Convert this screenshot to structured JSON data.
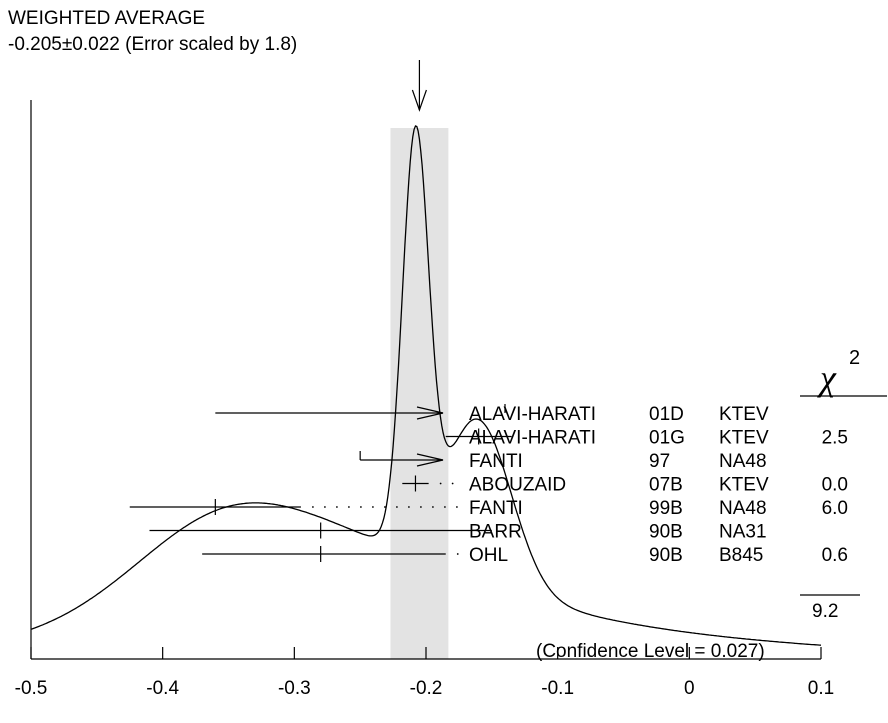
{
  "chart_data": {
    "type": "scatter",
    "title": "WEIGHTED AVERAGE",
    "subtitle": "-0.205±0.022 (Error scaled by 1.8)",
    "average": -0.205,
    "average_error": 0.022,
    "xlim": [
      -0.5,
      0.1
    ],
    "x_ticks": [
      "-0.5",
      "-0.4",
      "-0.3",
      "-0.2",
      "-0.1",
      "0",
      "0.1"
    ],
    "x_tick_values": [
      -0.5,
      -0.4,
      -0.3,
      -0.2,
      -0.1,
      0,
      0.1
    ],
    "chi2_header": "χ",
    "chi2_superscript": "2",
    "measurements": [
      {
        "author": "ALAVI-HARATI",
        "ref": "01D",
        "exp": "KTEV",
        "value": -0.14,
        "low": -0.36,
        "high": 0.1,
        "arrow": true,
        "chi2": ""
      },
      {
        "author": "ALAVI-HARATI",
        "ref": "01G",
        "exp": "KTEV",
        "value": -0.16,
        "low": -0.185,
        "high": -0.135,
        "arrow": false,
        "chi2": "2.5"
      },
      {
        "author": "FANTI",
        "ref": "97",
        "exp": "NA48",
        "value": -0.25,
        "low": -0.25,
        "high": 0.1,
        "arrow": true,
        "chi2": ""
      },
      {
        "author": "ABOUZAID",
        "ref": "07B",
        "exp": "KTEV",
        "value": -0.208,
        "low": -0.218,
        "high": -0.198,
        "arrow": false,
        "chi2": "0.0"
      },
      {
        "author": "FANTI",
        "ref": "99B",
        "exp": "NA48",
        "value": -0.36,
        "low": -0.425,
        "high": -0.295,
        "arrow": false,
        "chi2": "6.0"
      },
      {
        "author": "BARR",
        "ref": "90B",
        "exp": "NA31",
        "value": -0.28,
        "low": -0.41,
        "high": -0.15,
        "arrow": false,
        "chi2": ""
      },
      {
        "author": "OHL",
        "ref": "90B",
        "exp": "B845",
        "value": -0.28,
        "low": -0.37,
        "high": -0.185,
        "arrow": false,
        "chi2": "0.6"
      }
    ],
    "chi2_total": "9.2",
    "confidence_level": "(Confidence Level = 0.027)",
    "colors": {
      "band": "#e3e3e3",
      "line": "#000000"
    }
  }
}
